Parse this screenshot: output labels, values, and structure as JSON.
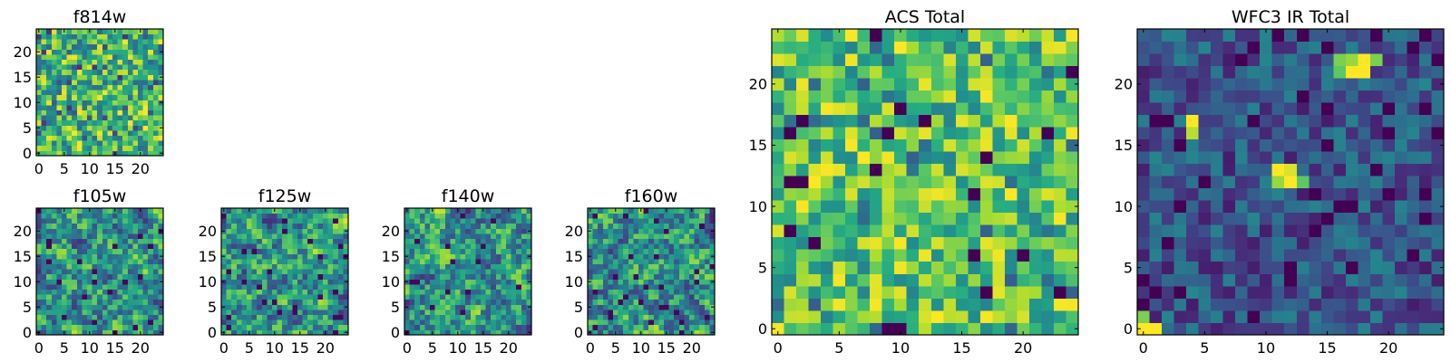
{
  "chart_data": [
    {
      "id": "f814w",
      "type": "heatmap",
      "title": "f814w",
      "colormap": "viridis",
      "xlim": [
        -0.5,
        24.5
      ],
      "ylim": [
        -0.5,
        24.5
      ],
      "xticks": [
        0,
        5,
        10,
        15,
        20
      ],
      "yticks": [
        0,
        5,
        10,
        15,
        20
      ],
      "grid_size": 25,
      "value_range": [
        0,
        1
      ],
      "pattern": "fine-noise",
      "seed": 11
    },
    {
      "id": "f105w",
      "type": "heatmap",
      "title": "f105w",
      "colormap": "viridis",
      "xlim": [
        -0.5,
        24.5
      ],
      "ylim": [
        -0.5,
        24.5
      ],
      "xticks": [
        0,
        5,
        10,
        15,
        20
      ],
      "yticks": [
        0,
        5,
        10,
        15,
        20
      ],
      "grid_size": 25,
      "value_range": [
        0,
        1
      ],
      "pattern": "smooth-noise",
      "seed": 23
    },
    {
      "id": "f125w",
      "type": "heatmap",
      "title": "f125w",
      "colormap": "viridis",
      "xlim": [
        -0.5,
        24.5
      ],
      "ylim": [
        -0.5,
        24.5
      ],
      "xticks": [
        0,
        5,
        10,
        15,
        20
      ],
      "yticks": [
        0,
        5,
        10,
        15,
        20
      ],
      "grid_size": 25,
      "value_range": [
        0,
        1
      ],
      "pattern": "smooth-noise",
      "seed": 37
    },
    {
      "id": "f140w",
      "type": "heatmap",
      "title": "f140w",
      "colormap": "viridis",
      "xlim": [
        -0.5,
        24.5
      ],
      "ylim": [
        -0.5,
        24.5
      ],
      "xticks": [
        0,
        5,
        10,
        15,
        20
      ],
      "yticks": [
        0,
        5,
        10,
        15,
        20
      ],
      "grid_size": 25,
      "value_range": [
        0,
        1
      ],
      "pattern": "smooth-noise",
      "seed": 41
    },
    {
      "id": "f160w",
      "type": "heatmap",
      "title": "f160w",
      "colormap": "viridis",
      "xlim": [
        -0.5,
        24.5
      ],
      "ylim": [
        -0.5,
        24.5
      ],
      "xticks": [
        0,
        5,
        10,
        15,
        20
      ],
      "yticks": [
        0,
        5,
        10,
        15,
        20
      ],
      "grid_size": 25,
      "value_range": [
        0,
        1
      ],
      "pattern": "smooth-noise",
      "seed": 53
    },
    {
      "id": "acs_total",
      "type": "heatmap",
      "title": "ACS Total",
      "colormap": "viridis",
      "xlim": [
        -0.5,
        24.5
      ],
      "ylim": [
        -0.5,
        24.5
      ],
      "xticks": [
        0,
        5,
        10,
        15,
        20
      ],
      "yticks": [
        0,
        5,
        10,
        15,
        20
      ],
      "grid_size": 25,
      "value_range": [
        0,
        1
      ],
      "pattern": "bright-noise",
      "seed": 67
    },
    {
      "id": "wfc3_ir_total",
      "type": "heatmap",
      "title": "WFC3 IR Total",
      "colormap": "viridis",
      "xlim": [
        -0.5,
        24.5
      ],
      "ylim": [
        -0.5,
        24.5
      ],
      "xticks": [
        0,
        5,
        10,
        15,
        20
      ],
      "yticks": [
        0,
        5,
        10,
        15,
        20
      ],
      "grid_size": 25,
      "value_range": [
        0,
        1
      ],
      "pattern": "dark-sources",
      "seed": 79,
      "bright_sources": [
        {
          "x": 0,
          "y": 0,
          "value": 1.0
        },
        {
          "x": 1,
          "y": 0,
          "value": 1.0
        },
        {
          "x": 0,
          "y": 1,
          "value": 0.8
        },
        {
          "x": 4,
          "y": 17,
          "value": 1.0
        },
        {
          "x": 4,
          "y": 16,
          "value": 0.9
        },
        {
          "x": 11,
          "y": 13,
          "value": 1.0
        },
        {
          "x": 12,
          "y": 13,
          "value": 0.95
        },
        {
          "x": 12,
          "y": 12,
          "value": 1.0
        },
        {
          "x": 11,
          "y": 12,
          "value": 0.85
        },
        {
          "x": 13,
          "y": 12,
          "value": 0.75
        },
        {
          "x": 16,
          "y": 22,
          "value": 0.8
        },
        {
          "x": 17,
          "y": 22,
          "value": 0.85
        },
        {
          "x": 18,
          "y": 22,
          "value": 1.0
        },
        {
          "x": 19,
          "y": 22,
          "value": 0.8
        },
        {
          "x": 17,
          "y": 21,
          "value": 1.0
        },
        {
          "x": 18,
          "y": 21,
          "value": 1.0
        },
        {
          "x": 16,
          "y": 21,
          "value": 0.75
        }
      ]
    }
  ]
}
